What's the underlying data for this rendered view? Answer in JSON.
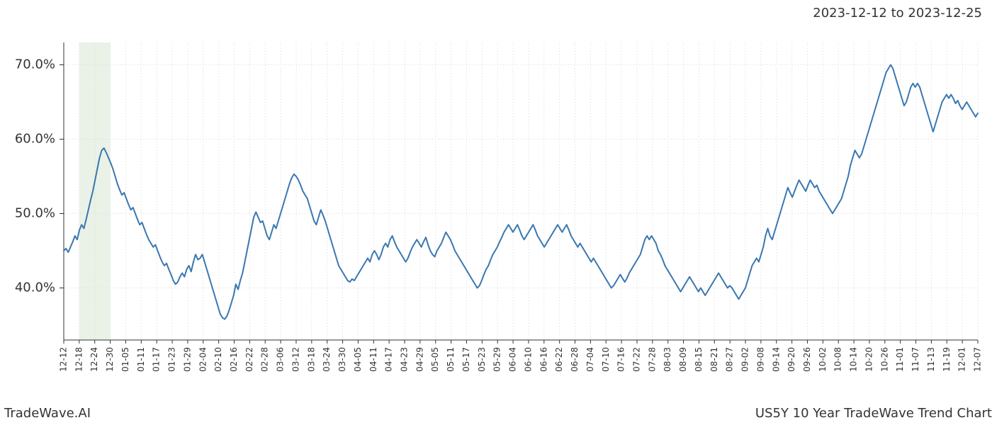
{
  "header": {
    "date_range": "2023-12-12 to 2023-12-25"
  },
  "footer": {
    "brand": "TradeWave.AI",
    "subtitle": "US5Y 10 Year TradeWave Trend Chart"
  },
  "chart": {
    "type": "line",
    "background_color": "#ffffff",
    "grid_color": "#d9d9d9",
    "grid_dash": "1,3",
    "axis_color": "#333333",
    "line_color": "#3a77af",
    "line_width": 2.0,
    "highlight_band": {
      "fill": "#dce8d6",
      "opacity": 0.6,
      "x_start_index": 1,
      "x_end_index": 3
    },
    "ylim": [
      33,
      73
    ],
    "yticks": [
      40,
      50,
      60,
      70
    ],
    "ytick_labels": [
      "40.0%",
      "50.0%",
      "60.0%",
      "70.0%"
    ],
    "ytick_fontsize": 18,
    "x_labels": [
      "12-12",
      "12-18",
      "12-24",
      "12-30",
      "01-05",
      "01-11",
      "01-17",
      "01-23",
      "01-29",
      "02-04",
      "02-10",
      "02-16",
      "02-22",
      "02-28",
      "03-06",
      "03-12",
      "03-18",
      "03-24",
      "03-30",
      "04-05",
      "04-11",
      "04-17",
      "04-23",
      "04-29",
      "05-05",
      "05-11",
      "05-17",
      "05-23",
      "05-29",
      "06-04",
      "06-10",
      "06-16",
      "06-22",
      "06-28",
      "07-04",
      "07-10",
      "07-16",
      "07-22",
      "07-28",
      "08-03",
      "08-09",
      "08-15",
      "08-21",
      "08-27",
      "09-02",
      "09-08",
      "09-14",
      "09-20",
      "09-26",
      "10-02",
      "10-08",
      "10-14",
      "10-20",
      "10-26",
      "11-01",
      "11-07",
      "11-13",
      "11-19",
      "12-01",
      "12-07"
    ],
    "xtick_fontsize": 12,
    "xtick_rotation": -90,
    "series": {
      "values": [
        45.0,
        45.3,
        44.8,
        45.5,
        46.2,
        47.0,
        46.5,
        47.8,
        48.5,
        48.0,
        49.2,
        50.5,
        51.8,
        53.0,
        54.5,
        56.0,
        57.5,
        58.5,
        58.8,
        58.2,
        57.5,
        56.8,
        56.0,
        55.0,
        54.0,
        53.2,
        52.5,
        52.8,
        52.0,
        51.2,
        50.5,
        50.8,
        50.0,
        49.2,
        48.5,
        48.8,
        48.0,
        47.2,
        46.5,
        46.0,
        45.5,
        45.8,
        45.0,
        44.2,
        43.5,
        43.0,
        43.3,
        42.5,
        41.8,
        41.0,
        40.5,
        40.8,
        41.5,
        42.0,
        41.5,
        42.5,
        43.0,
        42.2,
        43.5,
        44.5,
        43.8,
        44.0,
        44.5,
        43.5,
        42.5,
        41.5,
        40.5,
        39.5,
        38.5,
        37.5,
        36.5,
        36.0,
        35.8,
        36.2,
        37.0,
        38.0,
        39.0,
        40.5,
        39.8,
        41.0,
        42.0,
        43.5,
        45.0,
        46.5,
        48.0,
        49.5,
        50.2,
        49.5,
        48.8,
        49.0,
        48.0,
        47.0,
        46.5,
        47.5,
        48.5,
        48.0,
        49.0,
        50.0,
        51.0,
        52.0,
        53.0,
        54.0,
        54.8,
        55.3,
        55.0,
        54.5,
        53.8,
        53.0,
        52.5,
        52.0,
        51.0,
        50.0,
        49.0,
        48.5,
        49.5,
        50.5,
        49.8,
        49.0,
        48.0,
        47.0,
        46.0,
        45.0,
        44.0,
        43.0,
        42.5,
        42.0,
        41.5,
        41.0,
        40.8,
        41.2,
        41.0,
        41.5,
        42.0,
        42.5,
        43.0,
        43.5,
        44.0,
        43.5,
        44.5,
        45.0,
        44.5,
        43.8,
        44.5,
        45.5,
        46.0,
        45.5,
        46.5,
        47.0,
        46.2,
        45.5,
        45.0,
        44.5,
        44.0,
        43.5,
        44.0,
        44.8,
        45.5,
        46.0,
        46.5,
        46.0,
        45.5,
        46.2,
        46.8,
        45.8,
        45.0,
        44.5,
        44.2,
        45.0,
        45.5,
        46.0,
        46.8,
        47.5,
        47.0,
        46.5,
        45.8,
        45.0,
        44.5,
        44.0,
        43.5,
        43.0,
        42.5,
        42.0,
        41.5,
        41.0,
        40.5,
        40.0,
        40.3,
        41.0,
        41.8,
        42.5,
        43.0,
        43.8,
        44.5,
        45.0,
        45.5,
        46.2,
        46.8,
        47.5,
        48.0,
        48.5,
        48.0,
        47.5,
        48.0,
        48.5,
        47.8,
        47.0,
        46.5,
        47.0,
        47.5,
        48.0,
        48.5,
        47.8,
        47.0,
        46.5,
        46.0,
        45.5,
        46.0,
        46.5,
        47.0,
        47.5,
        48.0,
        48.5,
        48.0,
        47.5,
        48.0,
        48.5,
        47.8,
        47.0,
        46.5,
        46.0,
        45.5,
        46.0,
        45.5,
        45.0,
        44.5,
        44.0,
        43.5,
        44.0,
        43.5,
        43.0,
        42.5,
        42.0,
        41.5,
        41.0,
        40.5,
        40.0,
        40.3,
        40.8,
        41.3,
        41.8,
        41.3,
        40.8,
        41.3,
        42.0,
        42.5,
        43.0,
        43.5,
        44.0,
        44.5,
        45.5,
        46.5,
        47.0,
        46.5,
        47.0,
        46.5,
        46.0,
        45.0,
        44.5,
        43.8,
        43.0,
        42.5,
        42.0,
        41.5,
        41.0,
        40.5,
        40.0,
        39.5,
        40.0,
        40.5,
        41.0,
        41.5,
        41.0,
        40.5,
        40.0,
        39.5,
        40.0,
        39.5,
        39.0,
        39.5,
        40.0,
        40.5,
        41.0,
        41.5,
        42.0,
        41.5,
        41.0,
        40.5,
        40.0,
        40.3,
        40.0,
        39.5,
        39.0,
        38.5,
        39.0,
        39.5,
        40.0,
        41.0,
        42.0,
        43.0,
        43.5,
        44.0,
        43.5,
        44.5,
        45.5,
        47.0,
        48.0,
        47.0,
        46.5,
        47.5,
        48.5,
        49.5,
        50.5,
        51.5,
        52.5,
        53.5,
        52.8,
        52.2,
        53.0,
        53.8,
        54.5,
        54.0,
        53.5,
        53.0,
        53.8,
        54.5,
        54.0,
        53.5,
        53.8,
        53.0,
        52.5,
        52.0,
        51.5,
        51.0,
        50.5,
        50.0,
        50.5,
        51.0,
        51.5,
        52.0,
        53.0,
        54.0,
        55.0,
        56.5,
        57.5,
        58.5,
        58.0,
        57.5,
        58.0,
        59.0,
        60.0,
        61.0,
        62.0,
        63.0,
        64.0,
        65.0,
        66.0,
        67.0,
        68.0,
        69.0,
        69.5,
        70.0,
        69.5,
        68.5,
        67.5,
        66.5,
        65.5,
        64.5,
        65.0,
        66.0,
        67.0,
        67.5,
        67.0,
        67.5,
        67.0,
        66.0,
        65.0,
        64.0,
        63.0,
        62.0,
        61.0,
        62.0,
        63.0,
        64.0,
        65.0,
        65.5,
        66.0,
        65.5,
        66.0,
        65.5,
        64.8,
        65.2,
        64.5,
        64.0,
        64.5,
        65.0,
        64.5,
        64.0,
        63.5,
        63.0,
        63.5
      ]
    }
  }
}
